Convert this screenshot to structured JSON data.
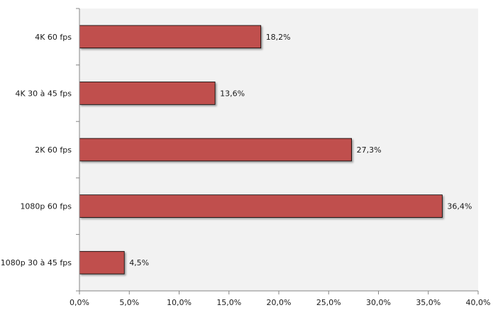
{
  "chart_data": {
    "type": "bar",
    "orientation": "horizontal",
    "categories": [
      "4K 60 fps",
      "4K 30 à 45 fps",
      "2K 60 fps",
      "1080p 60 fps",
      "1080p 30 à 45 fps"
    ],
    "values": [
      18.2,
      13.6,
      27.3,
      36.4,
      4.5
    ],
    "value_labels": [
      "18,2%",
      "13,6%",
      "27,3%",
      "36,4%",
      "4,5%"
    ],
    "x_ticks": [
      "0,0%",
      "5,0%",
      "10,0%",
      "15,0%",
      "20,0%",
      "25,0%",
      "30,0%",
      "35,0%",
      "40,0%"
    ],
    "xlim": [
      0,
      40
    ],
    "title": "",
    "xlabel": "",
    "ylabel": "",
    "grid": false,
    "legend": "none",
    "colors": {
      "bar_fill": "#c0504d",
      "bar_stroke": "#000000",
      "plot_background": "#f2f2f2",
      "axis": "#868686"
    }
  }
}
